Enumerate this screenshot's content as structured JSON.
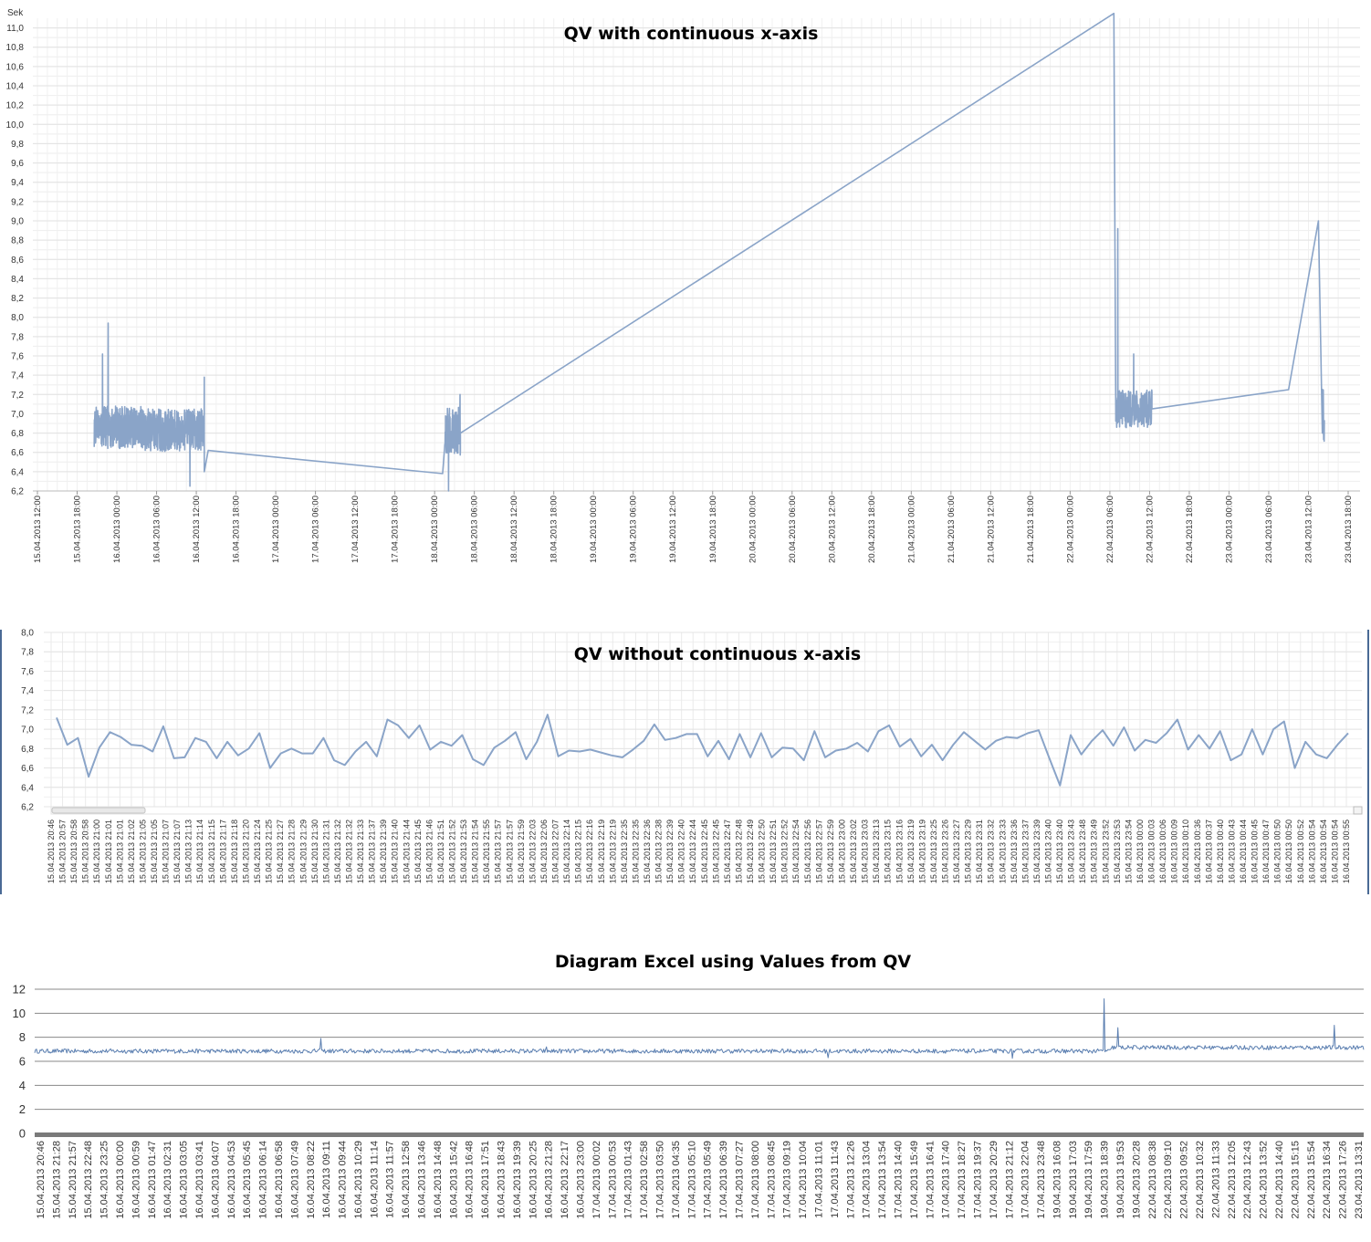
{
  "chart_data": [
    {
      "type": "line",
      "title": "QV with continuous x-axis",
      "ylabel": "Sek",
      "ylim": [
        6.2,
        11.1
      ],
      "yticks": [
        "6,2",
        "6,4",
        "6,6",
        "6,8",
        "7,0",
        "7,2",
        "7,4",
        "7,6",
        "7,8",
        "8,0",
        "8,2",
        "8,4",
        "8,6",
        "8,8",
        "9,0",
        "9,2",
        "9,4",
        "9,6",
        "9,8",
        "10,0",
        "10,2",
        "10,4",
        "10,6",
        "10,8",
        "11,0"
      ],
      "xticks": [
        "15.04.2013 12:00",
        "15.04.2013 18:00",
        "16.04.2013 00:00",
        "16.04.2013 06:00",
        "16.04.2013 12:00",
        "16.04.2013 18:00",
        "17.04.2013 00:00",
        "17.04.2013 06:00",
        "17.04.2013 12:00",
        "17.04.2013 18:00",
        "18.04.2013 00:00",
        "18.04.2013 06:00",
        "18.04.2013 12:00",
        "18.04.2013 18:00",
        "19.04.2013 00:00",
        "19.04.2013 06:00",
        "19.04.2013 12:00",
        "19.04.2013 18:00",
        "20.04.2013 00:00",
        "20.04.2013 06:00",
        "20.04.2013 12:00",
        "20.04.2013 18:00",
        "21.04.2013 00:00",
        "21.04.2013 06:00",
        "21.04.2013 12:00",
        "21.04.2013 18:00",
        "22.04.2013 00:00",
        "22.04.2013 06:00",
        "22.04.2013 12:00",
        "22.04.2013 18:00",
        "23.04.2013 00:00",
        "23.04.2013 06:00",
        "23.04.2013 12:00",
        "23.04.2013 18:00"
      ],
      "grid": true,
      "series": [
        {
          "color": "#8aa4c8",
          "segments": [
            {
              "x_start": 1.43,
              "x_end": 2.7,
              "mean": 6.86,
              "amp": 0.22,
              "spikes": [
                [
                  1.64,
                  7.62
                ],
                [
                  1.78,
                  7.94
                ]
              ]
            },
            {
              "x_start": 2.7,
              "x_end": 4.2,
              "mean": 6.83,
              "amp": 0.22,
              "spikes": [
                [
                  3.84,
                  6.25
                ],
                [
                  4.2,
                  7.38
                ]
              ]
            },
            {
              "x_start": 10.25,
              "x_end": 10.65,
              "mean": 6.82,
              "amp": 0.25,
              "spikes": [
                [
                  10.35,
                  6.2
                ],
                [
                  10.64,
                  7.2
                ]
              ]
            },
            {
              "x_start": 27.15,
              "x_end": 28.06,
              "mean": 7.05,
              "amp": 0.2,
              "spikes": [
                [
                  27.2,
                  8.92
                ],
                [
                  27.6,
                  7.62
                ]
              ]
            },
            {
              "x_start": 32.35,
              "x_end": 32.4,
              "mean": 7.0,
              "amp": 0.3,
              "spikes": []
            }
          ],
          "connectors": [
            [
              4.2,
              6.4
            ],
            [
              4.3,
              6.62
            ],
            [
              10.2,
              6.38
            ],
            [
              10.65,
              6.8
            ],
            [
              27.1,
              11.15
            ],
            [
              27.15,
              6.95
            ],
            [
              28.06,
              7.05
            ],
            [
              31.5,
              7.25
            ],
            [
              32.25,
              9.0
            ],
            [
              32.35,
              6.8
            ]
          ]
        }
      ]
    },
    {
      "type": "line",
      "title": "QV without continuous x-axis",
      "ylim": [
        6.2,
        8.0
      ],
      "yticks": [
        "6,2",
        "6,4",
        "6,6",
        "6,8",
        "7,0",
        "7,2",
        "7,4",
        "7,6",
        "7,8",
        "8,0"
      ],
      "xticks": [
        "15.04.2013 20:46",
        "15.04.2013 20:57",
        "15.04.2013 20:58",
        "15.04.2013 20:58",
        "15.04.2013 21:00",
        "15.04.2013 21:01",
        "15.04.2013 21:01",
        "15.04.2013 21:02",
        "15.04.2013 21:05",
        "15.04.2013 21:05",
        "15.04.2013 21:07",
        "15.04.2013 21:07",
        "15.04.2013 21:13",
        "15.04.2013 21:14",
        "15.04.2013 21:15",
        "15.04.2013 21:17",
        "15.04.2013 21:18",
        "15.04.2013 21:20",
        "15.04.2013 21:24",
        "15.04.2013 21:25",
        "15.04.2013 21:27",
        "15.04.2013 21:28",
        "15.04.2013 21:29",
        "15.04.2013 21:30",
        "15.04.2013 21:31",
        "15.04.2013 21:32",
        "15.04.2013 21:32",
        "15.04.2013 21:33",
        "15.04.2013 21:37",
        "15.04.2013 21:39",
        "15.04.2013 21:40",
        "15.04.2013 21:44",
        "15.04.2013 21:45",
        "15.04.2013 21:46",
        "15.04.2013 21:51",
        "15.04.2013 21:52",
        "15.04.2013 21:53",
        "15.04.2013 21:54",
        "15.04.2013 21:55",
        "15.04.2013 21:57",
        "15.04.2013 21:57",
        "15.04.2013 21:59",
        "15.04.2013 22:03",
        "15.04.2013 22:06",
        "15.04.2013 22:07",
        "15.04.2013 22:14",
        "15.04.2013 22:15",
        "15.04.2013 22:16",
        "15.04.2013 22:19",
        "15.04.2013 22:19",
        "15.04.2013 22:35",
        "15.04.2013 22:35",
        "15.04.2013 22:36",
        "15.04.2013 22:38",
        "15.04.2013 22:39",
        "15.04.2013 22:40",
        "15.04.2013 22:44",
        "15.04.2013 22:45",
        "15.04.2013 22:45",
        "15.04.2013 22:47",
        "15.04.2013 22:48",
        "15.04.2013 22:49",
        "15.04.2013 22:50",
        "15.04.2013 22:51",
        "15.04.2013 22:52",
        "15.04.2013 22:54",
        "15.04.2013 22:56",
        "15.04.2013 22:57",
        "15.04.2013 22:59",
        "15.04.2013 23:00",
        "15.04.2013 23:02",
        "15.04.2013 23:03",
        "15.04.2013 23:13",
        "15.04.2013 23:15",
        "15.04.2013 23:16",
        "15.04.2013 23:19",
        "15.04.2013 23:19",
        "15.04.2013 23:25",
        "15.04.2013 23:26",
        "15.04.2013 23:27",
        "15.04.2013 23:29",
        "15.04.2013 23:31",
        "15.04.2013 23:32",
        "15.04.2013 23:33",
        "15.04.2013 23:36",
        "15.04.2013 23:37",
        "15.04.2013 23:39",
        "15.04.2013 23:40",
        "15.04.2013 23:40",
        "15.04.2013 23:43",
        "15.04.2013 23:48",
        "15.04.2013 23:49",
        "15.04.2013 23:52",
        "15.04.2013 23:53",
        "15.04.2013 23:54",
        "16.04.2013 00:00",
        "16.04.2013 00:03",
        "16.04.2013 00:06",
        "16.04.2013 00:09",
        "16.04.2013 00:10",
        "16.04.2013 00:36",
        "16.04.2013 00:37",
        "16.04.2013 00:40",
        "16.04.2013 00:43",
        "16.04.2013 00:44",
        "16.04.2013 00:45",
        "16.04.2013 00:47",
        "16.04.2013 00:50",
        "16.04.2013 00:50",
        "16.04.2013 00:52",
        "16.04.2013 00:54",
        "16.04.2013 00:54",
        "16.04.2013 00:54",
        "16.04.2013 00:55"
      ],
      "grid": true,
      "series": [
        {
          "color": "#8aa4c8",
          "values": [
            7.12,
            6.84,
            6.91,
            6.51,
            6.81,
            6.97,
            6.92,
            6.84,
            6.83,
            6.77,
            7.03,
            6.7,
            6.71,
            6.91,
            6.87,
            6.7,
            6.87,
            6.73,
            6.8,
            6.96,
            6.6,
            6.75,
            6.8,
            6.75,
            6.75,
            6.91,
            6.68,
            6.63,
            6.77,
            6.87,
            6.72,
            7.1,
            7.04,
            6.91,
            7.04,
            6.79,
            6.87,
            6.83,
            6.94,
            6.69,
            6.63,
            6.81,
            6.88,
            6.97,
            6.69,
            6.87,
            7.15,
            6.72,
            6.78,
            6.77,
            6.79,
            6.76,
            6.73,
            6.71,
            6.79,
            6.88,
            7.05,
            6.89,
            6.91,
            6.95,
            6.95,
            6.72,
            6.88,
            6.69,
            6.95,
            6.71,
            6.96,
            6.71,
            6.81,
            6.8,
            6.68,
            6.98,
            6.71,
            6.78,
            6.8,
            6.86,
            6.77,
            6.98,
            7.04,
            6.82,
            6.9,
            6.72,
            6.84,
            6.68,
            6.84,
            6.97,
            6.88,
            6.79,
            6.88,
            6.92,
            6.91,
            6.96,
            6.99,
            6.7,
            6.42,
            6.94,
            6.74,
            6.88,
            6.99,
            6.83,
            7.02,
            6.78,
            6.89,
            6.86,
            6.96,
            7.1,
            6.79,
            6.94,
            6.8,
            6.98,
            6.68,
            6.74,
            7.0,
            6.74,
            7.0,
            7.08,
            6.6,
            6.87,
            6.74,
            6.7,
            6.84,
            6.96
          ]
        }
      ]
    },
    {
      "type": "line",
      "title": "Diagram Excel using Values from QV",
      "ylim": [
        0,
        12
      ],
      "yticks": [
        "0",
        "2",
        "4",
        "6",
        "8",
        "10",
        "12"
      ],
      "xticks": [
        "15.04.2013 20:46",
        "15.04.2013 21:28",
        "15.04.2013 21:57",
        "15.04.2013 22:48",
        "15.04.2013 23:25",
        "16.04.2013 00:00",
        "16.04.2013 00:59",
        "16.04.2013 01:47",
        "16.04.2013 02:31",
        "16.04.2013 03:05",
        "16.04.2013 03:41",
        "16.04.2013 04:07",
        "16.04.2013 04:53",
        "16.04.2013 05:45",
        "16.04.2013 06:14",
        "16.04.2013 06:58",
        "16.04.2013 07:49",
        "16.04.2013 08:22",
        "16.04.2013 09:11",
        "16.04.2013 09:44",
        "16.04.2013 10:29",
        "16.04.2013 11:14",
        "16.04.2013 11:57",
        "16.04.2013 12:58",
        "16.04.2013 13:46",
        "16.04.2013 14:48",
        "16.04.2013 15:42",
        "16.04.2013 16:48",
        "16.04.2013 17:51",
        "16.04.2013 18:43",
        "16.04.2013 19:39",
        "16.04.2013 20:25",
        "16.04.2013 21:28",
        "16.04.2013 22:17",
        "16.04.2013 23:00",
        "17.04.2013 00:02",
        "17.04.2013 00:53",
        "17.04.2013 01:43",
        "17.04.2013 02:58",
        "17.04.2013 03:50",
        "17.04.2013 04:35",
        "17.04.2013 05:10",
        "17.04.2013 05:49",
        "17.04.2013 06:39",
        "17.04.2013 07:27",
        "17.04.2013 08:00",
        "17.04.2013 08:45",
        "17.04.2013 09:19",
        "17.04.2013 10:04",
        "17.04.2013 11:01",
        "17.04.2013 11:43",
        "17.04.2013 12:26",
        "17.04.2013 13:04",
        "17.04.2013 13:54",
        "17.04.2013 14:40",
        "17.04.2013 15:49",
        "17.04.2013 16:41",
        "17.04.2013 17:40",
        "17.04.2013 18:27",
        "17.04.2013 19:37",
        "17.04.2013 20:29",
        "17.04.2013 21:12",
        "17.04.2013 22:04",
        "17.04.2013 23:48",
        "19.04.2013 16:08",
        "19.04.2013 17:03",
        "19.04.2013 17:59",
        "19.04.2013 18:39",
        "19.04.2013 19:53",
        "19.04.2013 20:28",
        "22.04.2013 08:38",
        "22.04.2013 09:10",
        "22.04.2013 09:52",
        "22.04.2013 10:32",
        "22.04.2013 11:33",
        "22.04.2013 12:05",
        "22.04.2013 12:43",
        "22.04.2013 13:52",
        "22.04.2013 14:40",
        "22.04.2013 15:15",
        "22.04.2013 15:54",
        "22.04.2013 16:34",
        "22.04.2013 17:26",
        "23.04.2013 13:31"
      ],
      "grid": true,
      "series": [
        {
          "color": "#5a7eb0",
          "n_points": 1450,
          "base": 6.85,
          "amp": 0.18,
          "spikes": [
            [
              0.215,
              7.9
            ],
            [
              0.385,
              7.2
            ],
            [
              0.597,
              6.3
            ],
            [
              0.736,
              6.25
            ],
            [
              0.805,
              11.2
            ],
            [
              0.815,
              8.8
            ],
            [
              0.978,
              9.0
            ]
          ],
          "level_after": [
            [
              0.81,
              7.15
            ]
          ]
        }
      ]
    }
  ]
}
